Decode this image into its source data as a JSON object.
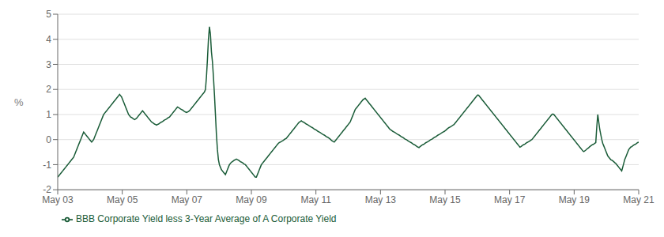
{
  "chart_data": {
    "type": "line",
    "ylabel": "%",
    "grid": true,
    "legend": "lower left",
    "xlim": [
      0,
      216
    ],
    "xticks": [
      {
        "value": 0,
        "label": "May 03"
      },
      {
        "value": 24,
        "label": "May 05"
      },
      {
        "value": 48,
        "label": "May 07"
      },
      {
        "value": 72,
        "label": "May 09"
      },
      {
        "value": 96,
        "label": "May 11"
      },
      {
        "value": 120,
        "label": "May 13"
      },
      {
        "value": 144,
        "label": "May 15"
      },
      {
        "value": 168,
        "label": "May 17"
      },
      {
        "value": 192,
        "label": "May 19"
      },
      {
        "value": 216,
        "label": "May 21"
      }
    ],
    "ylim": [
      -2,
      5
    ],
    "yticks": [
      -2,
      -1,
      0,
      1,
      2,
      3,
      4,
      5
    ],
    "x": [
      0,
      0.37,
      0.74,
      1.11,
      1.48,
      1.86,
      2.23,
      2.6,
      2.97,
      3.34,
      3.71,
      4.08,
      4.45,
      4.82,
      5.2,
      5.57,
      5.94,
      6.31,
      6.68,
      7.05,
      7.42,
      7.79,
      8.16,
      8.54,
      8.91,
      9.28,
      9.65,
      10.02,
      10.39,
      10.76,
      11.13,
      11.51,
      11.88,
      12.25,
      12.62,
      12.99,
      13.36,
      13.73,
      14.1,
      14.47,
      14.85,
      15.22,
      15.59,
      15.96,
      16.33,
      16.7,
      17.07,
      17.44,
      17.81,
      18.19,
      18.56,
      18.93,
      19.3,
      19.67,
      20.04,
      20.41,
      20.78,
      21.15,
      21.53,
      21.9,
      22.27,
      22.64,
      23.01,
      23.38,
      23.75,
      24.12,
      24.49,
      24.87,
      25.24,
      25.61,
      25.98,
      26.35,
      26.72,
      27.09,
      27.46,
      27.84,
      28.21,
      28.58,
      28.95,
      29.32,
      29.69,
      30.06,
      30.43,
      30.8,
      31.18,
      31.55,
      31.92,
      32.29,
      32.66,
      33.03,
      33.4,
      33.77,
      34.14,
      34.52,
      34.89,
      35.26,
      35.63,
      36,
      36.37,
      36.74,
      37.11,
      37.48,
      37.86,
      38.23,
      38.6,
      38.97,
      39.34,
      39.71,
      40.08,
      40.45,
      40.82,
      41.2,
      41.57,
      41.94,
      42.31,
      42.68,
      43.05,
      43.42,
      43.79,
      44.16,
      44.54,
      44.91,
      45.28,
      45.65,
      46.02,
      46.39,
      46.76,
      47.13,
      47.51,
      47.88,
      48.25,
      48.62,
      48.99,
      49.36,
      49.73,
      50.1,
      50.47,
      50.85,
      51.22,
      51.59,
      51.96,
      52.33,
      52.7,
      53.07,
      53.44,
      53.81,
      54.19,
      54.56,
      54.93,
      55.3,
      55.67,
      56.04,
      56.41,
      56.78,
      57.15,
      57.53,
      57.9,
      58.27,
      58.64,
      59.01,
      59.38,
      59.75,
      60.12,
      60.49,
      60.87,
      61.24,
      61.61,
      61.98,
      62.35,
      62.72,
      63.09,
      63.46,
      63.84,
      64.21,
      64.58,
      64.95,
      65.32,
      65.69,
      66.06,
      66.43,
      66.8,
      67.18,
      67.55,
      67.92,
      68.29,
      68.66,
      69.03,
      69.4,
      69.77,
      70.14,
      70.52,
      70.89,
      71.26,
      71.63,
      72,
      72.37,
      72.74,
      73.11,
      73.48,
      73.86,
      74.23,
      74.6,
      74.97,
      75.34,
      75.71,
      76.08,
      76.45,
      76.82,
      77.2,
      77.57,
      77.94,
      78.31,
      78.68,
      79.05,
      79.42,
      79.79,
      80.16,
      80.54,
      80.91,
      81.28,
      81.65,
      82.02,
      82.39,
      82.76,
      83.13,
      83.51,
      83.88,
      84.25,
      84.62,
      84.99,
      85.36,
      85.73,
      86.1,
      86.47,
      86.85,
      87.22,
      87.59,
      87.96,
      88.33,
      88.7,
      89.07,
      89.44,
      89.81,
      90.19,
      90.56,
      90.93,
      91.3,
      91.67,
      92.04,
      92.41,
      92.78,
      93.15,
      93.53,
      93.9,
      94.27,
      94.64,
      95.01,
      95.38,
      95.75,
      96.12,
      96.49,
      96.87,
      97.24,
      97.61,
      97.98,
      98.35,
      98.72,
      99.09,
      99.46,
      99.84,
      100.21,
      100.58,
      100.95,
      101.32,
      101.69,
      102.06,
      102.43,
      102.8,
      103.18,
      103.55,
      103.92,
      104.29,
      104.66,
      105.03,
      105.4,
      105.77,
      106.14,
      106.52,
      106.89,
      107.26,
      107.63,
      108,
      108.37,
      108.74,
      109.11,
      109.48,
      109.86,
      110.23,
      110.6,
      110.97,
      111.34,
      111.71,
      112.08,
      112.45,
      112.82,
      113.2,
      113.57,
      113.94,
      114.31,
      114.68,
      115.05,
      115.42,
      115.79,
      116.16,
      116.54,
      116.91,
      117.28,
      117.65,
      118.02,
      118.39,
      118.76,
      119.13,
      119.51,
      119.88,
      120.25,
      120.62,
      120.99,
      121.36,
      121.73,
      122.1,
      122.47,
      122.85,
      123.22,
      123.59,
      123.96,
      124.33,
      124.7,
      125.07,
      125.44,
      125.81,
      126.19,
      126.56,
      126.93,
      127.3,
      127.67,
      128.04,
      128.41,
      128.78,
      129.15,
      129.53,
      129.9,
      130.27,
      130.64,
      131.01,
      131.38,
      131.75,
      132.12,
      132.49,
      132.87,
      133.24,
      133.61,
      133.98,
      134.35,
      134.72,
      135.09,
      135.46,
      135.84,
      136.21,
      136.58,
      136.95,
      137.32,
      137.69,
      138.06,
      138.43,
      138.8,
      139.18,
      139.55,
      139.92,
      140.29,
      140.66,
      141.03,
      141.4,
      141.77,
      142.14,
      142.52,
      142.89,
      143.26,
      143.63,
      144,
      144.37,
      144.74,
      145.11,
      145.48,
      145.86,
      146.23,
      146.6,
      146.97,
      147.34,
      147.71,
      148.08,
      148.45,
      148.82,
      149.2,
      149.57,
      149.94,
      150.31,
      150.68,
      151.05,
      151.42,
      151.79,
      152.16,
      152.54,
      152.91,
      153.28,
      153.65,
      154.02,
      154.39,
      154.76,
      155.13,
      155.51,
      155.88,
      156.25,
      156.62,
      156.99,
      157.36,
      157.73,
      158.1,
      158.47,
      158.85,
      159.22,
      159.59,
      159.96,
      160.33,
      160.7,
      161.07,
      161.44,
      161.81,
      162.19,
      162.56,
      162.93,
      163.3,
      163.67,
      164.04,
      164.41,
      164.78,
      165.15,
      165.53,
      165.9,
      166.27,
      166.64,
      167.01,
      167.38,
      167.75,
      168.12,
      168.49,
      168.87,
      169.24,
      169.61,
      169.98,
      170.35,
      170.72,
      171.09,
      171.46,
      171.84,
      172.21,
      172.58,
      172.95,
      173.32,
      173.69,
      174.06,
      174.43,
      174.8,
      175.18,
      175.55,
      175.92,
      176.29,
      176.66,
      177.03,
      177.4,
      177.77,
      178.14,
      178.52,
      178.89,
      179.26,
      179.63,
      180,
      180.37,
      180.74,
      181.11,
      181.48,
      181.86,
      182.23,
      182.6,
      182.97,
      183.34,
      183.71,
      184.08,
      184.45,
      184.82,
      185.2,
      185.57,
      185.94,
      186.31,
      186.68,
      187.05,
      187.42,
      187.79,
      188.16,
      188.54,
      188.91,
      189.28,
      189.65,
      190.02,
      190.39,
      190.76,
      191.13,
      191.51,
      191.88,
      192.25,
      192.62,
      192.99,
      193.36,
      193.73,
      194.1,
      194.47,
      194.85,
      195.22,
      195.59,
      195.96,
      196.33,
      196.7,
      197.07,
      197.44,
      197.81,
      198.19,
      198.56,
      198.93,
      199.3,
      199.67,
      200.04,
      200.41,
      200.78,
      201.15,
      201.53,
      201.9,
      202.27,
      202.64,
      203.01,
      203.38,
      203.75,
      204.12,
      204.49,
      204.87,
      205.24,
      205.61,
      205.98,
      206.35,
      206.72,
      207.09,
      207.46,
      207.84,
      208.21,
      208.58,
      208.95,
      209.32,
      209.69,
      210.06,
      210.43,
      210.8,
      211.18,
      211.55,
      211.92,
      212.29,
      212.66,
      213.03,
      213.4,
      213.77,
      214.14,
      214.52,
      214.89,
      215.26,
      215.63,
      216
    ],
    "series": [
      {
        "name": "BBB Corporate Yield less 3-Year Average of A Corporate Yield",
        "color": "#1a5c38",
        "values": [
          -1.5,
          -1.45,
          -1.4,
          -1.35,
          -1.3,
          -1.25,
          -1.2,
          -1.15,
          -1.1,
          -1.05,
          -1.0,
          -0.95,
          -0.9,
          -0.85,
          -0.8,
          -0.75,
          -0.7,
          -0.6,
          -0.5,
          -0.4,
          -0.3,
          -0.2,
          -0.1,
          0.0,
          0.1,
          0.2,
          0.3,
          0.25,
          0.2,
          0.15,
          0.1,
          0.05,
          0.0,
          -0.05,
          -0.1,
          -0.05,
          0.0,
          0.1,
          0.2,
          0.3,
          0.4,
          0.5,
          0.6,
          0.7,
          0.8,
          0.9,
          1.0,
          1.05,
          1.1,
          1.15,
          1.2,
          1.25,
          1.3,
          1.35,
          1.4,
          1.45,
          1.5,
          1.55,
          1.6,
          1.65,
          1.7,
          1.75,
          1.8,
          1.75,
          1.7,
          1.6,
          1.5,
          1.4,
          1.3,
          1.2,
          1.1,
          1.0,
          0.95,
          0.9,
          0.88,
          0.85,
          0.82,
          0.8,
          0.82,
          0.85,
          0.9,
          0.95,
          1.0,
          1.05,
          1.1,
          1.15,
          1.1,
          1.05,
          1.0,
          0.95,
          0.9,
          0.85,
          0.8,
          0.75,
          0.7,
          0.68,
          0.65,
          0.62,
          0.6,
          0.58,
          0.6,
          0.62,
          0.65,
          0.68,
          0.7,
          0.72,
          0.75,
          0.78,
          0.8,
          0.82,
          0.85,
          0.88,
          0.9,
          0.95,
          1.0,
          1.05,
          1.1,
          1.15,
          1.2,
          1.25,
          1.3,
          1.28,
          1.25,
          1.22,
          1.2,
          1.18,
          1.15,
          1.12,
          1.1,
          1.08,
          1.1,
          1.12,
          1.15,
          1.2,
          1.25,
          1.3,
          1.35,
          1.4,
          1.45,
          1.5,
          1.55,
          1.6,
          1.65,
          1.7,
          1.75,
          1.8,
          1.85,
          1.9,
          2.0,
          2.5,
          3.2,
          4.0,
          4.5,
          4.2,
          3.5,
          3.1,
          2.5,
          1.8,
          1.0,
          0.2,
          -0.4,
          -0.8,
          -1.0,
          -1.1,
          -1.2,
          -1.25,
          -1.3,
          -1.35,
          -1.4,
          -1.3,
          -1.2,
          -1.1,
          -1.0,
          -0.95,
          -0.9,
          -0.88,
          -0.85,
          -0.82,
          -0.8,
          -0.78,
          -0.8,
          -0.82,
          -0.85,
          -0.88,
          -0.9,
          -0.92,
          -0.95,
          -0.98,
          -1.0,
          -1.05,
          -1.1,
          -1.15,
          -1.2,
          -1.25,
          -1.3,
          -1.35,
          -1.4,
          -1.45,
          -1.5,
          -1.5,
          -1.4,
          -1.3,
          -1.2,
          -1.1,
          -1.0,
          -0.95,
          -0.9,
          -0.85,
          -0.8,
          -0.75,
          -0.7,
          -0.65,
          -0.6,
          -0.55,
          -0.5,
          -0.45,
          -0.4,
          -0.35,
          -0.3,
          -0.25,
          -0.2,
          -0.15,
          -0.12,
          -0.1,
          -0.08,
          -0.05,
          -0.03,
          0.0,
          0.03,
          0.05,
          0.1,
          0.15,
          0.2,
          0.25,
          0.3,
          0.35,
          0.4,
          0.45,
          0.5,
          0.55,
          0.6,
          0.65,
          0.7,
          0.72,
          0.75,
          0.72,
          0.7,
          0.68,
          0.65,
          0.62,
          0.6,
          0.58,
          0.55,
          0.52,
          0.5,
          0.48,
          0.45,
          0.42,
          0.4,
          0.38,
          0.35,
          0.32,
          0.3,
          0.28,
          0.25,
          0.22,
          0.2,
          0.18,
          0.15,
          0.12,
          0.1,
          0.08,
          0.05,
          0.02,
          -0.02,
          -0.05,
          -0.08,
          -0.1,
          -0.05,
          0.0,
          0.05,
          0.1,
          0.15,
          0.2,
          0.25,
          0.3,
          0.35,
          0.4,
          0.45,
          0.5,
          0.55,
          0.6,
          0.65,
          0.7,
          0.8,
          0.9,
          1.0,
          1.1,
          1.2,
          1.25,
          1.3,
          1.35,
          1.4,
          1.45,
          1.5,
          1.55,
          1.6,
          1.62,
          1.65,
          1.6,
          1.55,
          1.5,
          1.45,
          1.4,
          1.35,
          1.3,
          1.25,
          1.2,
          1.15,
          1.1,
          1.05,
          1.0,
          0.95,
          0.9,
          0.85,
          0.8,
          0.75,
          0.7,
          0.65,
          0.6,
          0.55,
          0.5,
          0.45,
          0.4,
          0.38,
          0.35,
          0.32,
          0.3,
          0.28,
          0.25,
          0.22,
          0.2,
          0.18,
          0.15,
          0.12,
          0.1,
          0.08,
          0.05,
          0.02,
          0.0,
          -0.02,
          -0.05,
          -0.08,
          -0.1,
          -0.12,
          -0.15,
          -0.18,
          -0.2,
          -0.22,
          -0.25,
          -0.28,
          -0.3,
          -0.32,
          -0.28,
          -0.25,
          -0.22,
          -0.2,
          -0.18,
          -0.15,
          -0.12,
          -0.1,
          -0.08,
          -0.05,
          -0.02,
          0.0,
          0.02,
          0.05,
          0.08,
          0.1,
          0.12,
          0.15,
          0.18,
          0.2,
          0.22,
          0.25,
          0.28,
          0.3,
          0.32,
          0.35,
          0.38,
          0.42,
          0.45,
          0.48,
          0.5,
          0.52,
          0.55,
          0.58,
          0.6,
          0.65,
          0.7,
          0.75,
          0.8,
          0.85,
          0.9,
          0.95,
          1.0,
          1.05,
          1.1,
          1.15,
          1.2,
          1.25,
          1.3,
          1.35,
          1.4,
          1.45,
          1.5,
          1.55,
          1.6,
          1.65,
          1.7,
          1.75,
          1.78,
          1.75,
          1.7,
          1.65,
          1.6,
          1.55,
          1.5,
          1.45,
          1.4,
          1.35,
          1.3,
          1.25,
          1.2,
          1.15,
          1.1,
          1.05,
          1.0,
          0.95,
          0.9,
          0.85,
          0.8,
          0.75,
          0.7,
          0.65,
          0.6,
          0.55,
          0.5,
          0.45,
          0.4,
          0.35,
          0.3,
          0.25,
          0.2,
          0.15,
          0.1,
          0.05,
          0.0,
          -0.05,
          -0.1,
          -0.15,
          -0.2,
          -0.25,
          -0.3,
          -0.28,
          -0.25,
          -0.22,
          -0.2,
          -0.18,
          -0.15,
          -0.12,
          -0.1,
          -0.08,
          -0.05,
          -0.02,
          0.0,
          0.05,
          0.1,
          0.15,
          0.2,
          0.25,
          0.3,
          0.35,
          0.4,
          0.45,
          0.5,
          0.55,
          0.6,
          0.65,
          0.7,
          0.75,
          0.8,
          0.85,
          0.9,
          0.95,
          1.0,
          1.02,
          1.0,
          0.95,
          0.9,
          0.85,
          0.8,
          0.75,
          0.7,
          0.65,
          0.6,
          0.55,
          0.5,
          0.45,
          0.4,
          0.35,
          0.3,
          0.25,
          0.2,
          0.15,
          0.1,
          0.05,
          0.0,
          -0.05,
          -0.1,
          -0.15,
          -0.2,
          -0.25,
          -0.3,
          -0.35,
          -0.4,
          -0.45,
          -0.48,
          -0.45,
          -0.42,
          -0.38,
          -0.35,
          -0.32,
          -0.28,
          -0.25,
          -0.22,
          -0.2,
          -0.18,
          -0.15,
          -0.12,
          0.5,
          1.0,
          0.7,
          0.4,
          0.2,
          0.0,
          -0.15,
          -0.25,
          -0.35,
          -0.45,
          -0.55,
          -0.65,
          -0.7,
          -0.75,
          -0.8,
          -0.82,
          -0.85,
          -0.88,
          -0.92,
          -0.95,
          -1.0,
          -1.05,
          -1.1,
          -1.15,
          -1.2,
          -1.25,
          -1.1,
          -0.95,
          -0.8,
          -0.7,
          -0.6,
          -0.5,
          -0.4,
          -0.35,
          -0.3,
          -0.28,
          -0.25,
          -0.22,
          -0.2,
          -0.18,
          -0.15,
          -0.12,
          -0.1
        ]
      }
    ]
  }
}
